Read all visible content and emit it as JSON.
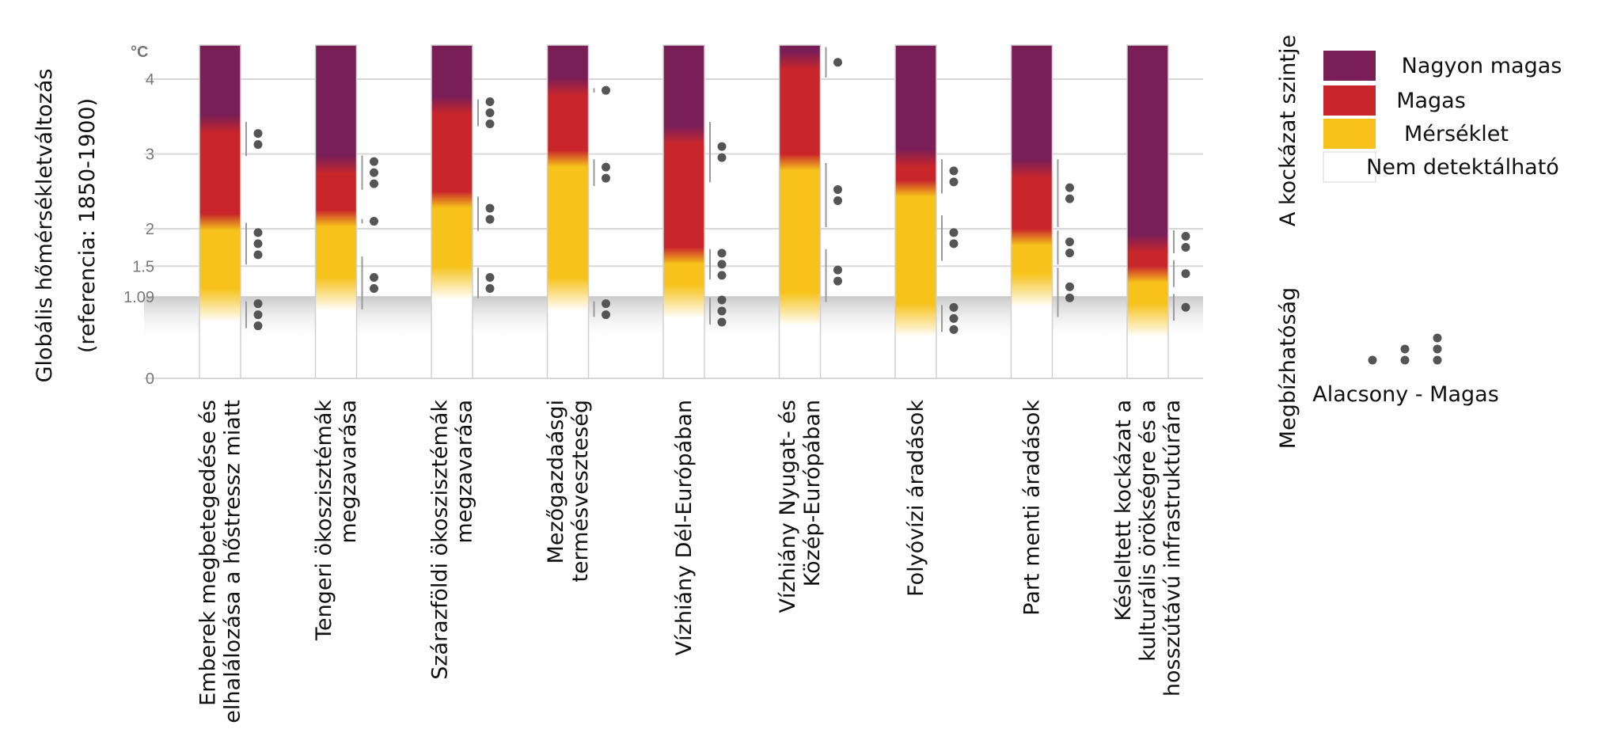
{
  "chart_data": {
    "type": "bar",
    "title": "",
    "ylabel_line1": "Globális hőmérsékletváltozás",
    "ylabel_line2": "(referencia: 1850-1900)",
    "unit": "°C",
    "ylim": [
      0,
      4.5
    ],
    "yticks": [
      {
        "value": 0,
        "label": "0"
      },
      {
        "value": 1.09,
        "label": "1.09"
      },
      {
        "value": 1.5,
        "label": "1.5"
      },
      {
        "value": 2,
        "label": "2"
      },
      {
        "value": 3,
        "label": "3"
      },
      {
        "value": 4,
        "label": "4"
      }
    ],
    "current_warming": 1.09,
    "categories": [
      {
        "label": [
          "Emberek megbetegedése és",
          "elhalálozása a hőstressz miatt"
        ],
        "transitions": {
          "moderate": 0.75,
          "high": 2.1,
          "very_high": 3.4
        },
        "confidence": [
          {
            "from": 0.65,
            "to": 1.05,
            "level": 3
          },
          {
            "from": 1.5,
            "to": 2.1,
            "level": 3
          },
          {
            "from": 2.95,
            "to": 3.45,
            "level": 2
          }
        ]
      },
      {
        "label": [
          "Tengeri ökoszisztémák",
          "megzavarása"
        ],
        "transitions": {
          "moderate": 0.9,
          "high": 2.15,
          "very_high": 2.85
        },
        "confidence": [
          {
            "from": 0.9,
            "to": 1.65,
            "level": 2
          },
          {
            "from": 2.05,
            "to": 2.15,
            "level": 1
          },
          {
            "from": 2.5,
            "to": 3.0,
            "level": 3
          }
        ]
      },
      {
        "label": [
          "Szárazföldi ökoszisztémák",
          "megzavarása"
        ],
        "transitions": {
          "moderate": 1.05,
          "high": 2.4,
          "very_high": 3.65
        },
        "confidence": [
          {
            "from": 1.05,
            "to": 1.5,
            "level": 2
          },
          {
            "from": 1.95,
            "to": 2.45,
            "level": 2
          },
          {
            "from": 3.35,
            "to": 3.75,
            "level": 3
          }
        ]
      },
      {
        "label": [
          "Mezőgazdaásgi",
          "termésveszteség"
        ],
        "transitions": {
          "moderate": 0.9,
          "high": 2.95,
          "very_high": 3.9
        },
        "confidence": [
          {
            "from": 0.8,
            "to": 1.05,
            "level": 2
          },
          {
            "from": 2.55,
            "to": 2.95,
            "level": 2
          },
          {
            "from": 3.8,
            "to": 3.9,
            "level": 1
          }
        ]
      },
      {
        "label": [
          "Vízhiány Dél-Európában"
        ],
        "transitions": {
          "moderate": 0.8,
          "high": 1.65,
          "very_high": 3.25
        },
        "confidence": [
          {
            "from": 0.7,
            "to": 1.1,
            "level": 3
          },
          {
            "from": 1.3,
            "to": 1.75,
            "level": 3
          },
          {
            "from": 2.6,
            "to": 3.45,
            "level": 2
          }
        ]
      },
      {
        "label": [
          "Vízhiány Nyugat- és",
          "Közép-Európában"
        ],
        "transitions": {
          "moderate": 0.7,
          "high": 2.9,
          "very_high": 4.25
        },
        "confidence": [
          {
            "from": 1.0,
            "to": 1.75,
            "level": 2
          },
          {
            "from": 2.0,
            "to": 2.9,
            "level": 2
          },
          {
            "from": 4.0,
            "to": 4.45,
            "level": 1
          }
        ]
      },
      {
        "label": [
          "Folyóvízi áradások"
        ],
        "transitions": {
          "moderate": 0.55,
          "high": 2.55,
          "very_high": 2.95
        },
        "confidence": [
          {
            "from": 0.6,
            "to": 1.0,
            "level": 3
          },
          {
            "from": 1.55,
            "to": 2.2,
            "level": 2
          },
          {
            "from": 2.45,
            "to": 2.95,
            "level": 2
          }
        ]
      },
      {
        "label": [
          "Part menti áradások"
        ],
        "transitions": {
          "moderate": 0.95,
          "high": 1.9,
          "very_high": 2.8
        },
        "confidence": [
          {
            "from": 0.8,
            "to": 1.5,
            "level": 2
          },
          {
            "from": 1.5,
            "to": 2.0,
            "level": 2
          },
          {
            "from": 2.0,
            "to": 2.95,
            "level": 2
          }
        ]
      },
      {
        "label": [
          "Késleltett kockázat a",
          "kulturális örökségre és a",
          "hosszútávú infrastruktúrára"
        ],
        "transitions": {
          "moderate": 0.55,
          "high": 1.4,
          "very_high": 1.8
        },
        "confidence": [
          {
            "from": 0.75,
            "to": 1.15,
            "level": 1
          },
          {
            "from": 1.2,
            "to": 1.6,
            "level": 1
          },
          {
            "from": 1.65,
            "to": 2.0,
            "level": 2
          }
        ]
      }
    ],
    "legend": {
      "title": "A kockázat szintje",
      "items": [
        {
          "label": "Nagyon magas",
          "color": "#7a1e57"
        },
        {
          "label": "Magas",
          "color": "#c9262b"
        },
        {
          "label": "Mérséklet",
          "color": "#f6c21b"
        },
        {
          "label": "Nem detektálható",
          "color": "#ffffff"
        }
      ],
      "confidence_title": "Megbízhatóság",
      "confidence_range": "Alacsony - Magas"
    },
    "colors": {
      "very_high": "#7a1e57",
      "high": "#c9262b",
      "moderate": "#f6c21b",
      "undetectable": "#ffffff",
      "dots": "#555555"
    }
  }
}
